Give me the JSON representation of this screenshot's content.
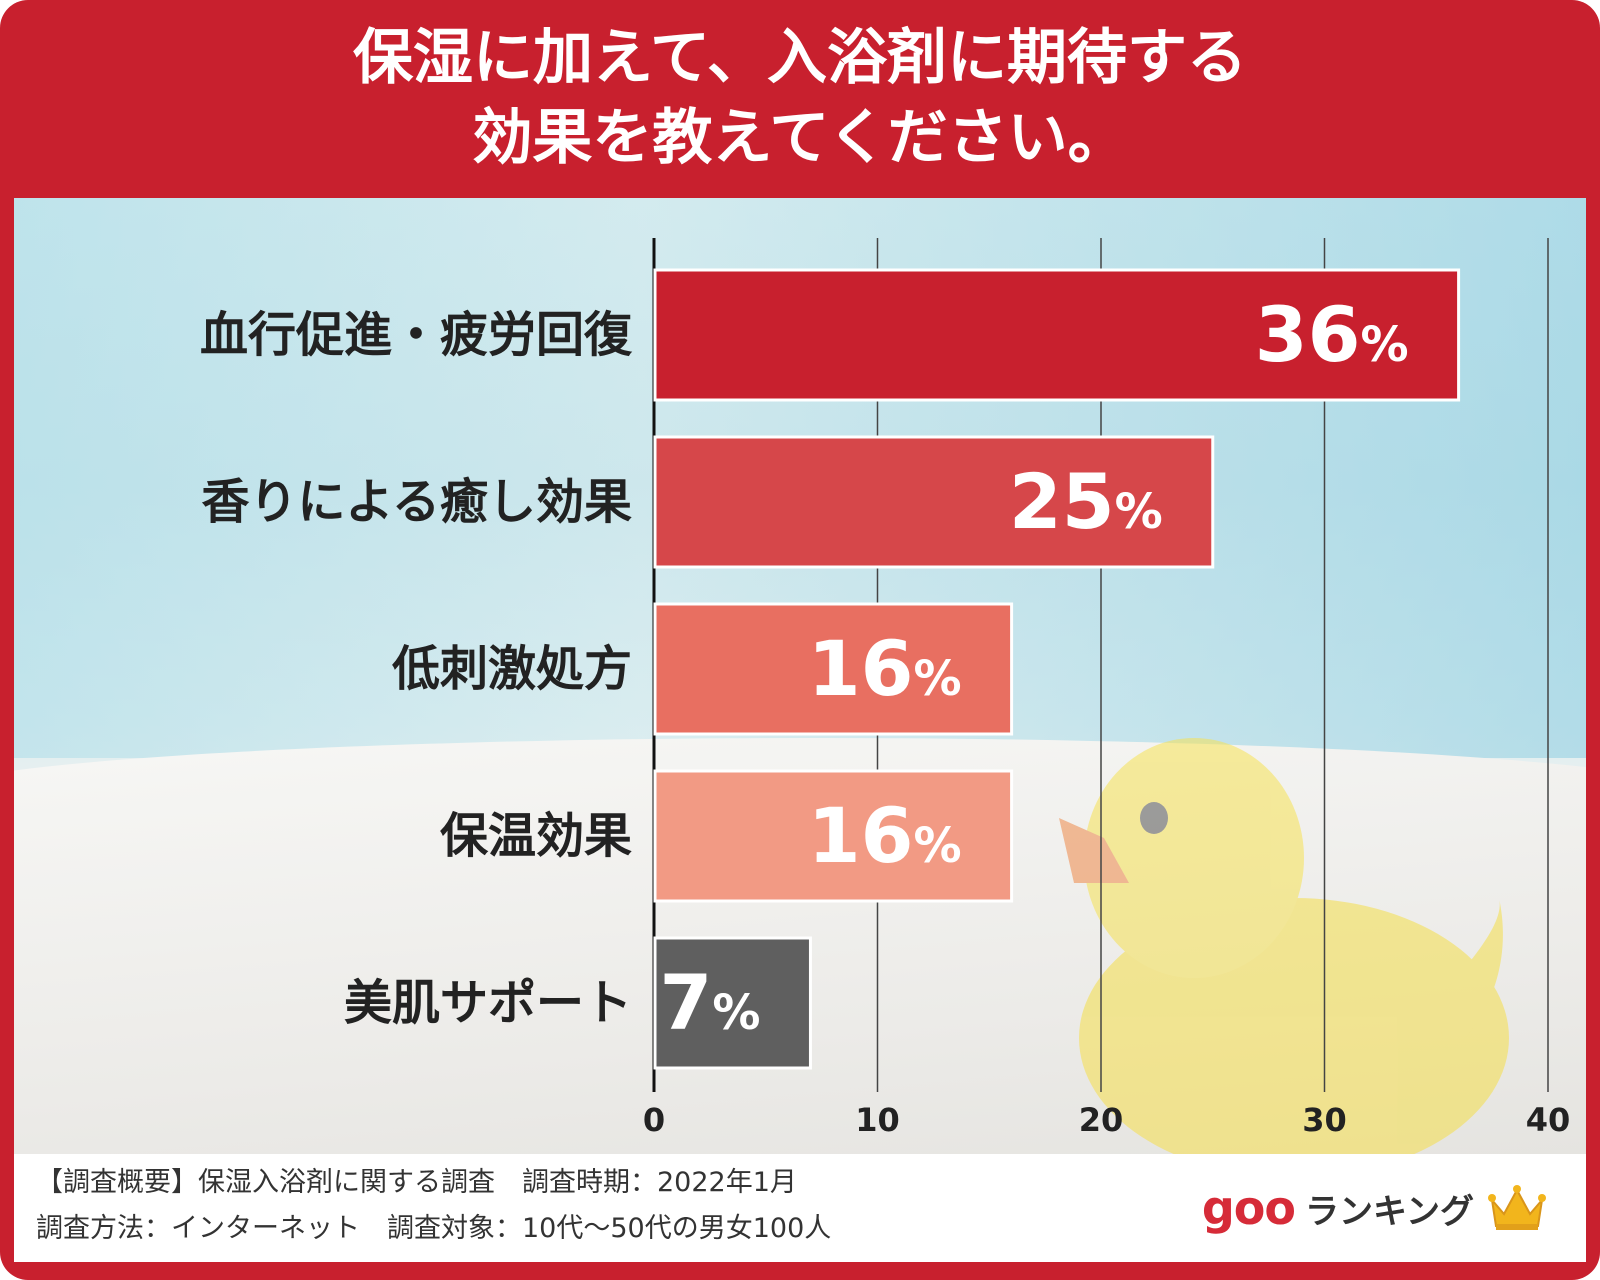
{
  "title": {
    "line1": "保湿に加えて、入浴剤に期待する",
    "line2": "効果を教えてください。"
  },
  "chart_data": {
    "type": "bar",
    "orientation": "horizontal",
    "categories": [
      "血行促進・疲労回復",
      "香りによる癒し効果",
      "低刺激処方",
      "保温効果",
      "美肌サポート"
    ],
    "values": [
      36,
      25,
      16,
      16,
      7
    ],
    "value_labels": [
      "36",
      "25",
      "16",
      "16",
      "7"
    ],
    "value_suffix": "%",
    "bar_colors": [
      "#c8202e",
      "#d6474a",
      "#e86f61",
      "#f29a84",
      "#5f5f5f"
    ],
    "xlim": [
      0,
      40
    ],
    "xticks": [
      "0",
      "10",
      "20",
      "30",
      "40"
    ],
    "grid": true
  },
  "footer": {
    "line1": "【調査概要】保湿入浴剤に関する調査　調査時期：2022年1月",
    "line2": "調査方法：インターネット　調査対象：10代〜50代の男女100人"
  },
  "logo": {
    "brand": "goo",
    "text": "ランキング",
    "icon": "crown-icon"
  },
  "colors": {
    "frame": "#c8202e",
    "text_dark": "#222222"
  }
}
